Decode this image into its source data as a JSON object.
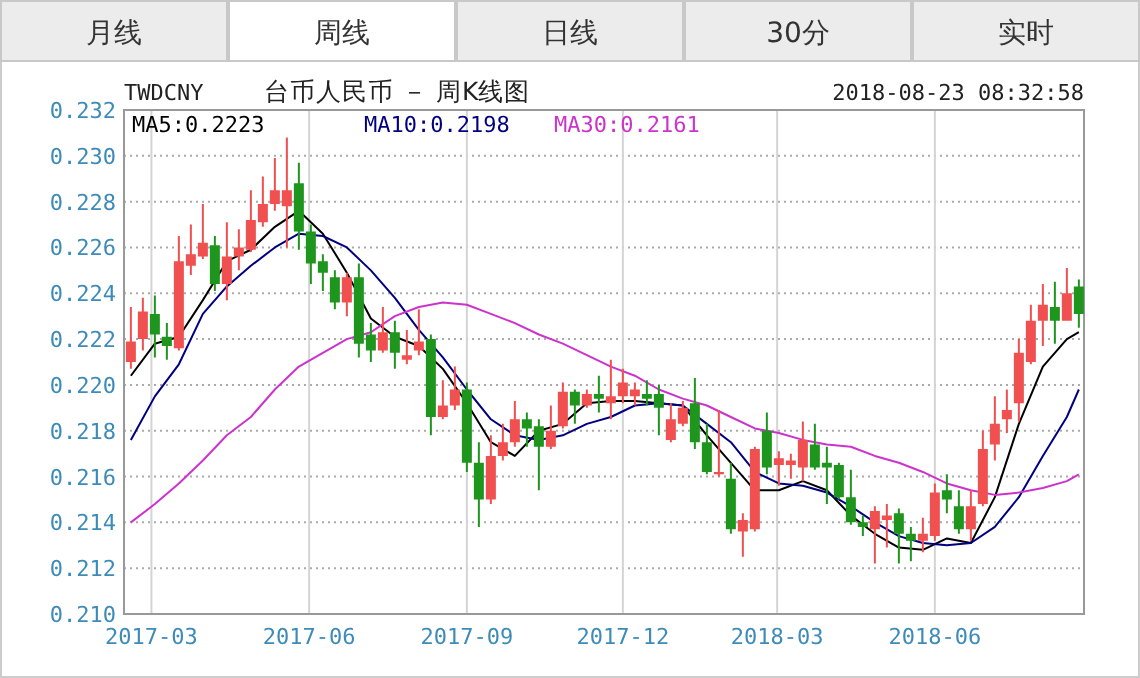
{
  "chart_data": {
    "type": "candlestick",
    "title": "台币人民币 － 周K线图",
    "subtitle": "TWDCNY",
    "annotations": [
      "月线",
      "周线",
      "日线",
      "30分",
      "实时",
      "2018-08-23 08:32:58"
    ],
    "x": [
      "2017-02-17",
      "2017-02-24",
      "2017-03-03",
      "2017-03-10",
      "2017-03-17",
      "2017-03-24",
      "2017-03-31",
      "2017-04-07",
      "2017-04-14",
      "2017-04-21",
      "2017-04-28",
      "2017-05-05",
      "2017-05-12",
      "2017-05-19",
      "2017-05-26",
      "2017-06-02",
      "2017-06-09",
      "2017-06-16",
      "2017-06-23",
      "2017-06-30",
      "2017-07-07",
      "2017-07-14",
      "2017-07-21",
      "2017-07-28",
      "2017-08-04",
      "2017-08-11",
      "2017-08-18",
      "2017-08-25",
      "2017-09-01",
      "2017-09-08",
      "2017-09-15",
      "2017-09-22",
      "2017-09-29",
      "2017-10-06",
      "2017-10-13",
      "2017-10-20",
      "2017-10-27",
      "2017-11-03",
      "2017-11-10",
      "2017-11-17",
      "2017-11-24",
      "2017-12-01",
      "2017-12-08",
      "2017-12-15",
      "2017-12-22",
      "2017-12-29",
      "2018-01-05",
      "2018-01-12",
      "2018-01-19",
      "2018-01-26",
      "2018-02-02",
      "2018-02-09",
      "2018-02-16",
      "2018-02-23",
      "2018-03-02",
      "2018-03-09",
      "2018-03-16",
      "2018-03-23",
      "2018-03-30",
      "2018-04-06",
      "2018-04-13",
      "2018-04-20",
      "2018-04-27",
      "2018-05-04",
      "2018-05-11",
      "2018-05-18",
      "2018-05-25",
      "2018-06-01",
      "2018-06-08",
      "2018-06-15",
      "2018-06-22",
      "2018-06-29",
      "2018-07-06",
      "2018-07-13",
      "2018-07-20",
      "2018-07-27",
      "2018-08-03",
      "2018-08-10",
      "2018-08-17",
      "2018-08-24"
    ],
    "ohlc": [
      [
        0.221,
        0.2234,
        0.2207,
        0.2219
      ],
      [
        0.222,
        0.2238,
        0.2215,
        0.2232
      ],
      [
        0.2231,
        0.2239,
        0.2212,
        0.2222
      ],
      [
        0.2221,
        0.2227,
        0.2211,
        0.2217
      ],
      [
        0.2216,
        0.2265,
        0.2215,
        0.2254
      ],
      [
        0.2252,
        0.227,
        0.2248,
        0.2257
      ],
      [
        0.2256,
        0.2279,
        0.2255,
        0.2262
      ],
      [
        0.2261,
        0.2265,
        0.2241,
        0.2244
      ],
      [
        0.2244,
        0.2271,
        0.2237,
        0.2256
      ],
      [
        0.2256,
        0.2268,
        0.225,
        0.226
      ],
      [
        0.2259,
        0.2285,
        0.2258,
        0.2272
      ],
      [
        0.2271,
        0.2291,
        0.2269,
        0.2279
      ],
      [
        0.2279,
        0.2299,
        0.2276,
        0.2285
      ],
      [
        0.2278,
        0.2308,
        0.226,
        0.2285
      ],
      [
        0.2288,
        0.2297,
        0.2259,
        0.2267
      ],
      [
        0.2267,
        0.227,
        0.2244,
        0.2253
      ],
      [
        0.2254,
        0.2257,
        0.2241,
        0.2249
      ],
      [
        0.2247,
        0.225,
        0.2233,
        0.2236
      ],
      [
        0.2236,
        0.2249,
        0.223,
        0.2247
      ],
      [
        0.2247,
        0.2253,
        0.2212,
        0.2218
      ],
      [
        0.2222,
        0.2227,
        0.221,
        0.2215
      ],
      [
        0.2215,
        0.2234,
        0.2214,
        0.2223
      ],
      [
        0.2223,
        0.2228,
        0.2207,
        0.2214
      ],
      [
        0.2211,
        0.2224,
        0.2209,
        0.2213
      ],
      [
        0.2215,
        0.2233,
        0.2213,
        0.2219
      ],
      [
        0.222,
        0.2222,
        0.2178,
        0.2186
      ],
      [
        0.2186,
        0.2202,
        0.2185,
        0.2191
      ],
      [
        0.2191,
        0.2208,
        0.2189,
        0.2198
      ],
      [
        0.2198,
        0.2201,
        0.2162,
        0.2166
      ],
      [
        0.2166,
        0.2175,
        0.2138,
        0.215
      ],
      [
        0.215,
        0.2178,
        0.2148,
        0.2169
      ],
      [
        0.2169,
        0.2183,
        0.2167,
        0.2175
      ],
      [
        0.2175,
        0.2193,
        0.2173,
        0.2185
      ],
      [
        0.2185,
        0.2188,
        0.2173,
        0.2181
      ],
      [
        0.2182,
        0.2185,
        0.2154,
        0.2173
      ],
      [
        0.2173,
        0.2191,
        0.2172,
        0.218
      ],
      [
        0.2182,
        0.2201,
        0.2181,
        0.2197
      ],
      [
        0.2197,
        0.2198,
        0.2183,
        0.2191
      ],
      [
        0.2191,
        0.2198,
        0.219,
        0.2196
      ],
      [
        0.2196,
        0.2204,
        0.2188,
        0.2194
      ],
      [
        0.2192,
        0.2211,
        0.2185,
        0.2195
      ],
      [
        0.2195,
        0.2207,
        0.2192,
        0.2201
      ],
      [
        0.2195,
        0.2201,
        0.2191,
        0.2198
      ],
      [
        0.2196,
        0.2202,
        0.2191,
        0.2194
      ],
      [
        0.2196,
        0.22,
        0.2178,
        0.219
      ],
      [
        0.2176,
        0.2192,
        0.2175,
        0.2185
      ],
      [
        0.2183,
        0.2193,
        0.2182,
        0.219
      ],
      [
        0.2192,
        0.2203,
        0.2172,
        0.2175
      ],
      [
        0.2175,
        0.2183,
        0.2161,
        0.2162
      ],
      [
        0.2161,
        0.2189,
        0.216,
        0.2162
      ],
      [
        0.2159,
        0.2166,
        0.2135,
        0.2137
      ],
      [
        0.2136,
        0.2144,
        0.2125,
        0.2141
      ],
      [
        0.2137,
        0.2173,
        0.2136,
        0.2172
      ],
      [
        0.218,
        0.2188,
        0.2161,
        0.2164
      ],
      [
        0.2165,
        0.2171,
        0.2156,
        0.2168
      ],
      [
        0.2165,
        0.217,
        0.2159,
        0.2167
      ],
      [
        0.2164,
        0.2184,
        0.2158,
        0.2176
      ],
      [
        0.2174,
        0.2183,
        0.2163,
        0.2164
      ],
      [
        0.2166,
        0.2173,
        0.2148,
        0.2164
      ],
      [
        0.2165,
        0.2166,
        0.215,
        0.2151
      ],
      [
        0.2151,
        0.2163,
        0.2139,
        0.214
      ],
      [
        0.214,
        0.2143,
        0.2134,
        0.2138
      ],
      [
        0.2137,
        0.2147,
        0.2122,
        0.2145
      ],
      [
        0.2141,
        0.2148,
        0.2129,
        0.2143
      ],
      [
        0.2144,
        0.2146,
        0.2122,
        0.2135
      ],
      [
        0.2135,
        0.2138,
        0.2123,
        0.2132
      ],
      [
        0.2132,
        0.2142,
        0.2127,
        0.2135
      ],
      [
        0.2134,
        0.2157,
        0.2132,
        0.2153
      ],
      [
        0.2154,
        0.2161,
        0.2144,
        0.215
      ],
      [
        0.2147,
        0.2154,
        0.2135,
        0.2137
      ],
      [
        0.2137,
        0.2154,
        0.2132,
        0.2147
      ],
      [
        0.2148,
        0.218,
        0.2147,
        0.2172
      ],
      [
        0.2174,
        0.2195,
        0.2167,
        0.2183
      ],
      [
        0.2185,
        0.2198,
        0.2179,
        0.2189
      ],
      [
        0.2192,
        0.222,
        0.2184,
        0.2214
      ],
      [
        0.221,
        0.2235,
        0.2209,
        0.2228
      ],
      [
        0.2228,
        0.2244,
        0.2217,
        0.2235
      ],
      [
        0.2234,
        0.2245,
        0.2218,
        0.2228
      ],
      [
        0.2228,
        0.2251,
        0.2228,
        0.224
      ],
      [
        0.2243,
        0.2246,
        0.2225,
        0.2231
      ]
    ],
    "colors": [
      "#f05050",
      "#f05050",
      "#1e961e",
      "#1e961e",
      "#f05050",
      "#f05050",
      "#f05050",
      "#1e961e",
      "#f05050",
      "#f05050",
      "#f05050",
      "#f05050",
      "#f05050",
      "#f05050",
      "#1e961e",
      "#1e961e",
      "#1e961e",
      "#1e961e",
      "#f05050",
      "#1e961e",
      "#1e961e",
      "#f05050",
      "#1e961e",
      "#f05050",
      "#f05050",
      "#1e961e",
      "#f05050",
      "#f05050",
      "#1e961e",
      "#1e961e",
      "#f05050",
      "#f05050",
      "#f05050",
      "#1e961e",
      "#1e961e",
      "#f05050",
      "#f05050",
      "#1e961e",
      "#f05050",
      "#1e961e",
      "#f05050",
      "#f05050",
      "#f05050",
      "#1e961e",
      "#1e961e",
      "#f05050",
      "#f05050",
      "#1e961e",
      "#1e961e",
      "#f05050",
      "#1e961e",
      "#f05050",
      "#f05050",
      "#1e961e",
      "#f05050",
      "#f05050",
      "#f05050",
      "#1e961e",
      "#1e961e",
      "#1e961e",
      "#1e961e",
      "#1e961e",
      "#f05050",
      "#f05050",
      "#1e961e",
      "#1e961e",
      "#f05050",
      "#f05050",
      "#1e961e",
      "#1e961e",
      "#f05050",
      "#f05050",
      "#f05050",
      "#f05050",
      "#f05050",
      "#f05050",
      "#f05050",
      "#1e961e",
      "#f05050",
      "#1e961e"
    ],
    "series": [
      {
        "type": "line",
        "name": "MA5:0.2223",
        "color": "#000000",
        "x": [
          "2017-02-17",
          "2017-03-03",
          "2017-03-17",
          "2017-03-31",
          "2017-04-14",
          "2017-04-28",
          "2017-05-12",
          "2017-05-26",
          "2017-06-09",
          "2017-06-23",
          "2017-07-07",
          "2017-07-21",
          "2017-08-04",
          "2017-08-18",
          "2017-09-01",
          "2017-09-15",
          "2017-09-29",
          "2017-10-13",
          "2017-10-27",
          "2017-11-10",
          "2017-11-24",
          "2017-12-08",
          "2017-12-22",
          "2018-01-05",
          "2018-01-19",
          "2018-02-02",
          "2018-02-16",
          "2018-03-02",
          "2018-03-16",
          "2018-03-30",
          "2018-04-13",
          "2018-04-27",
          "2018-05-11",
          "2018-05-25",
          "2018-06-08",
          "2018-06-22",
          "2018-07-06",
          "2018-07-20",
          "2018-08-03",
          "2018-08-17",
          "2018-08-24"
        ],
        "values": [
          0.2204,
          0.2218,
          0.2221,
          0.2237,
          0.2254,
          0.2259,
          0.2269,
          0.2276,
          0.2266,
          0.2249,
          0.2229,
          0.2221,
          0.2217,
          0.2207,
          0.2192,
          0.2175,
          0.2169,
          0.218,
          0.2183,
          0.2192,
          0.2193,
          0.2193,
          0.2192,
          0.2191,
          0.2178,
          0.2166,
          0.2154,
          0.2154,
          0.2158,
          0.2154,
          0.2143,
          0.2135,
          0.2129,
          0.2128,
          0.2133,
          0.2131,
          0.2151,
          0.2183,
          0.2208,
          0.222,
          0.2223
        ]
      },
      {
        "type": "line",
        "name": "MA10:0.2198",
        "color": "#000080",
        "x": [
          "2017-02-17",
          "2017-03-03",
          "2017-03-17",
          "2017-03-31",
          "2017-04-14",
          "2017-04-28",
          "2017-05-12",
          "2017-05-26",
          "2017-06-09",
          "2017-06-23",
          "2017-07-07",
          "2017-07-21",
          "2017-08-04",
          "2017-08-18",
          "2017-09-01",
          "2017-09-15",
          "2017-09-29",
          "2017-10-13",
          "2017-10-27",
          "2017-11-10",
          "2017-11-24",
          "2017-12-08",
          "2017-12-22",
          "2018-01-05",
          "2018-01-19",
          "2018-02-02",
          "2018-02-16",
          "2018-03-02",
          "2018-03-16",
          "2018-03-30",
          "2018-04-13",
          "2018-04-27",
          "2018-05-11",
          "2018-05-25",
          "2018-06-08",
          "2018-06-22",
          "2018-07-06",
          "2018-07-20",
          "2018-08-03",
          "2018-08-17",
          "2018-08-24"
        ],
        "values": [
          0.2176,
          0.2195,
          0.2209,
          0.2231,
          0.2243,
          0.2252,
          0.226,
          0.2266,
          0.2265,
          0.226,
          0.225,
          0.2238,
          0.2224,
          0.2212,
          0.2198,
          0.2185,
          0.2178,
          0.2176,
          0.2178,
          0.2183,
          0.2186,
          0.2191,
          0.2192,
          0.2191,
          0.2183,
          0.2175,
          0.2162,
          0.2157,
          0.2156,
          0.2153,
          0.2147,
          0.214,
          0.2134,
          0.2131,
          0.213,
          0.2131,
          0.2138,
          0.2151,
          0.2169,
          0.2186,
          0.2198
        ]
      },
      {
        "type": "line",
        "name": "MA30:0.2161",
        "color": "#cc33cc",
        "x": [
          "2017-02-17",
          "2017-03-03",
          "2017-03-17",
          "2017-03-31",
          "2017-04-14",
          "2017-04-28",
          "2017-05-12",
          "2017-05-26",
          "2017-06-09",
          "2017-06-23",
          "2017-07-07",
          "2017-07-21",
          "2017-08-04",
          "2017-08-18",
          "2017-09-01",
          "2017-09-15",
          "2017-09-29",
          "2017-10-13",
          "2017-10-27",
          "2017-11-10",
          "2017-11-24",
          "2017-12-08",
          "2017-12-22",
          "2018-01-05",
          "2018-01-19",
          "2018-02-02",
          "2018-02-16",
          "2018-03-02",
          "2018-03-16",
          "2018-03-30",
          "2018-04-13",
          "2018-04-27",
          "2018-05-11",
          "2018-05-25",
          "2018-06-08",
          "2018-06-22",
          "2018-07-06",
          "2018-07-20",
          "2018-08-03",
          "2018-08-17",
          "2018-08-24"
        ],
        "values": [
          0.214,
          0.2148,
          0.2157,
          0.2167,
          0.2178,
          0.2186,
          0.2198,
          0.2208,
          0.2214,
          0.222,
          0.2223,
          0.223,
          0.2234,
          0.2236,
          0.2235,
          0.2231,
          0.2227,
          0.2222,
          0.2218,
          0.2213,
          0.2208,
          0.2204,
          0.2198,
          0.2194,
          0.2191,
          0.2186,
          0.2181,
          0.2179,
          0.2176,
          0.2174,
          0.2173,
          0.2169,
          0.2166,
          0.2162,
          0.2157,
          0.2154,
          0.2152,
          0.2153,
          0.2155,
          0.2158,
          0.2161
        ]
      }
    ],
    "xlim": [
      "2017-02-13",
      "2018-08-27"
    ],
    "xticks": [
      {
        "value": "2017-03-01",
        "label": "2017-03"
      },
      {
        "value": "2017-06-01",
        "label": "2017-06"
      },
      {
        "value": "2017-09-01",
        "label": "2017-09"
      },
      {
        "value": "2017-12-01",
        "label": "2017-12"
      },
      {
        "value": "2018-03-01",
        "label": "2018-03"
      },
      {
        "value": "2018-06-01",
        "label": "2018-06"
      }
    ],
    "ylim": [
      0.21,
      0.232
    ],
    "yticks": [
      {
        "value": 0.21,
        "label": "0.210"
      },
      0.212,
      0.214,
      0.216,
      0.218,
      {
        "value": 0.22,
        "label": "0.220"
      },
      0.222,
      0.224,
      0.226,
      0.228,
      {
        "value": 0.23,
        "label": "0.230"
      },
      0.232
    ],
    "grid": true,
    "legend": "top"
  }
}
